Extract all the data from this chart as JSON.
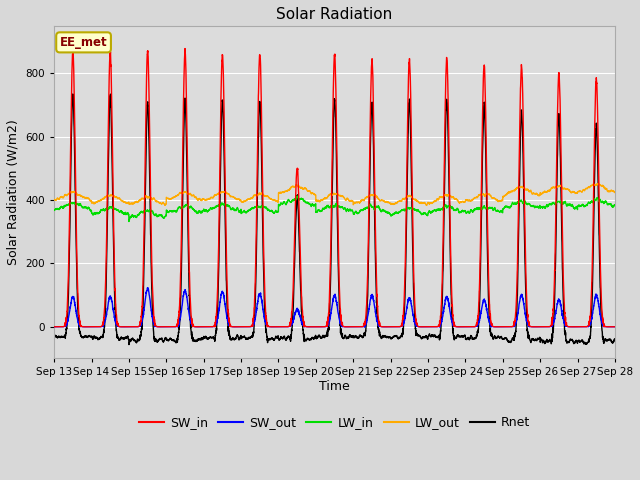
{
  "title": "Solar Radiation",
  "xlabel": "Time",
  "ylabel": "Solar Radiation (W/m2)",
  "ylim": [
    -100,
    950
  ],
  "xlim_days": [
    13,
    28
  ],
  "xtick_labels": [
    "Sep 13",
    "Sep 14",
    "Sep 15",
    "Sep 16",
    "Sep 17",
    "Sep 18",
    "Sep 19",
    "Sep 20",
    "Sep 21",
    "Sep 22",
    "Sep 23",
    "Sep 24",
    "Sep 25",
    "Sep 26",
    "Sep 27",
    "Sep 28"
  ],
  "annotation_text": "EE_met",
  "annotation_bg": "#ffffcc",
  "annotation_border": "#bbaa00",
  "annotation_text_color": "#880000",
  "fig_bg_color": "#d8d8d8",
  "plot_bg": "#dcdcdc",
  "grid_color": "#ffffff",
  "colors": {
    "SW_in": "#ff0000",
    "SW_out": "#0000ff",
    "LW_in": "#00dd00",
    "LW_out": "#ffaa00",
    "Rnet": "#000000"
  },
  "linewidths": {
    "SW_in": 1.0,
    "SW_out": 1.0,
    "LW_in": 1.0,
    "LW_out": 1.0,
    "Rnet": 1.0
  },
  "n_days": 15,
  "start_day": 13,
  "pts_per_day": 288,
  "title_fontsize": 11,
  "label_fontsize": 9,
  "tick_fontsize": 7.5,
  "legend_fontsize": 9
}
